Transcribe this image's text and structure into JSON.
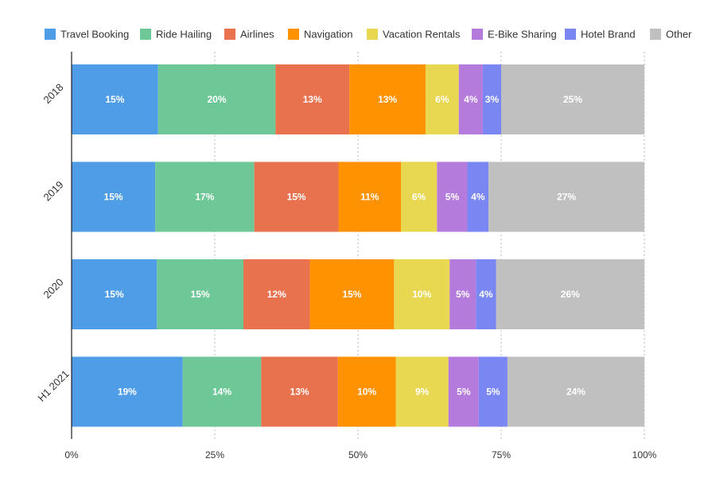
{
  "chart_data": {
    "type": "bar",
    "orientation": "horizontal",
    "stacked": true,
    "categories": [
      "2018",
      "2019",
      "2020",
      "H1 2021"
    ],
    "series": [
      {
        "name": "Travel Booking",
        "color": "#4e9de6",
        "values": [
          15.1,
          14.6,
          14.9,
          19.4
        ],
        "labels": [
          "15%",
          "15%",
          "15%",
          "19%"
        ]
      },
      {
        "name": "Ride Hailing",
        "color": "#6dc796",
        "values": [
          20.5,
          17.3,
          15.1,
          13.7
        ],
        "labels": [
          "20%",
          "17%",
          "15%",
          "14%"
        ]
      },
      {
        "name": "Airlines",
        "color": "#e8714e",
        "values": [
          12.9,
          14.7,
          11.6,
          13.4
        ],
        "labels": [
          "13%",
          "15%",
          "12%",
          "13%"
        ]
      },
      {
        "name": "Navigation",
        "color": "#fe9200",
        "values": [
          13.3,
          10.9,
          14.7,
          10.1
        ],
        "labels": [
          "13%",
          "11%",
          "15%",
          "10%"
        ]
      },
      {
        "name": "Vacation Rentals",
        "color": "#e8d751",
        "values": [
          5.8,
          6.3,
          9.7,
          9.2
        ],
        "labels": [
          "6%",
          "6%",
          "10%",
          "9%"
        ]
      },
      {
        "name": "E-Bike Sharing",
        "color": "#b57bdc",
        "values": [
          4.2,
          5.3,
          4.6,
          5.3
        ],
        "labels": [
          "4%",
          "5%",
          "5%",
          "5%"
        ]
      },
      {
        "name": "Hotel Brand",
        "color": "#7a87f3",
        "values": [
          3.2,
          3.7,
          3.5,
          5.0
        ],
        "labels": [
          "3%",
          "4%",
          "4%",
          "5%"
        ]
      },
      {
        "name": "Other",
        "color": "#c0c0c0",
        "values": [
          25.0,
          27.2,
          25.9,
          23.9
        ],
        "labels": [
          "25%",
          "27%",
          "26%",
          "24%"
        ]
      }
    ],
    "x_ticks": [
      "0%",
      "25%",
      "50%",
      "75%",
      "100%"
    ],
    "xlim": [
      0,
      100
    ],
    "grid": "vertical dotted",
    "legend_position": "top"
  }
}
